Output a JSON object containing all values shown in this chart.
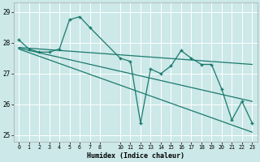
{
  "xlabel": "Humidex (Indice chaleur)",
  "bg_color": "#cce8e8",
  "line_color": "#1a7a6e",
  "grid_color": "#ffffff",
  "ylim": [
    24.8,
    29.3
  ],
  "xlim": [
    -0.5,
    23.5
  ],
  "yticks": [
    25,
    26,
    27,
    28,
    29
  ],
  "x_ticks": [
    0,
    1,
    2,
    3,
    4,
    5,
    6,
    7,
    8,
    10,
    11,
    12,
    13,
    14,
    15,
    16,
    17,
    18,
    19,
    20,
    21,
    22,
    23
  ],
  "series1_x": [
    0,
    1,
    2,
    3,
    4,
    5,
    6,
    7,
    10,
    11,
    12,
    13,
    14,
    15,
    16,
    17,
    18,
    19,
    20,
    21,
    22,
    23
  ],
  "series1_y": [
    28.1,
    27.8,
    27.7,
    27.7,
    27.8,
    28.75,
    28.85,
    28.5,
    27.5,
    27.4,
    25.4,
    27.15,
    27.0,
    27.25,
    27.75,
    27.5,
    27.3,
    27.3,
    26.5,
    25.5,
    26.1,
    25.4
  ],
  "trend1_x": [
    0,
    23
  ],
  "trend1_y": [
    27.85,
    27.3
  ],
  "trend2_x": [
    0,
    23
  ],
  "trend2_y": [
    27.8,
    25.1
  ],
  "trend3_x": [
    0,
    23
  ],
  "trend3_y": [
    27.83,
    26.1
  ]
}
